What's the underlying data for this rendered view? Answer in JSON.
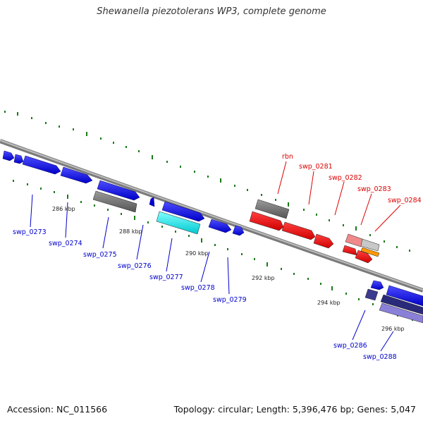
{
  "header": {
    "title": "Shewanella piezotolerans WP3, complete genome"
  },
  "footer": {
    "accession": "Accession: NC_011566",
    "stats": "Topology: circular; Length: 5,396,476 bp; Genes: 5,047"
  },
  "ruler": {
    "ticks": [
      "286 kbp",
      "288 kbp",
      "290 kbp",
      "292 kbp",
      "294 kbp",
      "296 kbp"
    ]
  },
  "genes": {
    "blue": [
      "swp_0273",
      "swp_0274",
      "swp_0275",
      "swp_0276",
      "swp_0277",
      "swp_0278",
      "swp_0279",
      "swp_0286",
      "swp_0288"
    ],
    "red": [
      "rbn",
      "swp_0281",
      "swp_0282",
      "swp_0283",
      "swp_0284"
    ]
  },
  "colors": {
    "cds": "#0000ee",
    "highlight": "#ff0000",
    "rna_like": "#00e5ee",
    "neutral": "#777777",
    "dark_purple": "#3b3b8f",
    "light_purple": "#8a80d8",
    "pink": "#f08a8a",
    "orange": "#ff9900",
    "track_dots": "#1a7a1a",
    "backbone": "#888888",
    "label_blue": "#0000cc",
    "label_red": "#dd0000"
  }
}
